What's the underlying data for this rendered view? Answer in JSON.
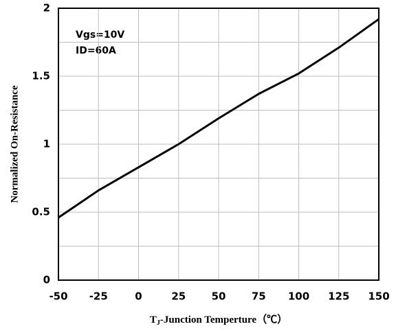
{
  "chart_data": {
    "type": "line",
    "x_label": {
      "main": "T",
      "sub": "J",
      "rest": "-Junction Temperture（℃）"
    },
    "y_label": "Normalized On-Resistance",
    "annotations": [
      "Vgs=10V",
      "ID=60A"
    ],
    "x": [
      -50,
      -25,
      0,
      25,
      50,
      75,
      100,
      125,
      150
    ],
    "series": [
      {
        "name": "Normalized On-Resistance",
        "color": "#000000",
        "values": [
          0.46,
          0.66,
          0.83,
          1.0,
          1.19,
          1.37,
          1.52,
          1.71,
          1.92
        ]
      }
    ],
    "xlim": [
      -50,
      150
    ],
    "xticks": [
      -50,
      -25,
      0,
      25,
      50,
      75,
      100,
      125,
      150
    ],
    "ylim": [
      0,
      2
    ],
    "yticks": [
      0,
      0.5,
      1,
      1.5,
      2
    ],
    "yminor": [
      0.25,
      0.75,
      1.25,
      1.75
    ],
    "grid": true
  }
}
